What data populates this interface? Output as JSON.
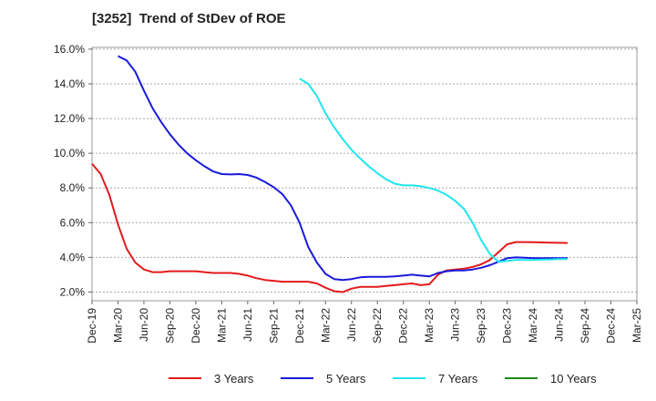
{
  "chart_data": {
    "type": "line",
    "title": "[3252]  Trend of StDev of ROE",
    "xlabel": "",
    "ylabel": "",
    "x_ticks": [
      "Dec-19",
      "Mar-20",
      "Jun-20",
      "Sep-20",
      "Dec-20",
      "Mar-21",
      "Jun-21",
      "Sep-21",
      "Dec-21",
      "Mar-22",
      "Jun-22",
      "Sep-22",
      "Dec-22",
      "Mar-23",
      "Jun-23",
      "Sep-23",
      "Dec-23",
      "Mar-24",
      "Jun-24",
      "Sep-24",
      "Dec-24",
      "Mar-25"
    ],
    "y_ticks": [
      "2.0%",
      "4.0%",
      "6.0%",
      "8.0%",
      "10.0%",
      "12.0%",
      "14.0%",
      "16.0%"
    ],
    "ylim": [
      1.5,
      16.1
    ],
    "grid": "horizontal-dashed",
    "legend_position": "bottom",
    "series": [
      {
        "name": "3 Years",
        "color": "#e31a1c",
        "values": [
          [
            0,
            9.4
          ],
          [
            1,
            8.8
          ],
          [
            2,
            7.6
          ],
          [
            3,
            5.9
          ],
          [
            4,
            4.5
          ],
          [
            5,
            3.7
          ],
          [
            6,
            3.3
          ],
          [
            7,
            3.15
          ],
          [
            8,
            3.15
          ],
          [
            9,
            3.2
          ],
          [
            10,
            3.2
          ],
          [
            11,
            3.2
          ],
          [
            12,
            3.2
          ],
          [
            13,
            3.15
          ],
          [
            14,
            3.1
          ],
          [
            15,
            3.1
          ],
          [
            16,
            3.1
          ],
          [
            17,
            3.05
          ],
          [
            18,
            2.95
          ],
          [
            19,
            2.8
          ],
          [
            20,
            2.7
          ],
          [
            21,
            2.65
          ],
          [
            22,
            2.6
          ],
          [
            23,
            2.6
          ],
          [
            24,
            2.6
          ],
          [
            25,
            2.6
          ],
          [
            26,
            2.5
          ],
          [
            27,
            2.25
          ],
          [
            28,
            2.05
          ],
          [
            29,
            2.0
          ],
          [
            30,
            2.2
          ],
          [
            31,
            2.3
          ],
          [
            32,
            2.3
          ],
          [
            33,
            2.3
          ],
          [
            34,
            2.35
          ],
          [
            35,
            2.4
          ],
          [
            36,
            2.45
          ],
          [
            37,
            2.5
          ],
          [
            38,
            2.4
          ],
          [
            39,
            2.45
          ],
          [
            40,
            3.0
          ],
          [
            41,
            3.25
          ],
          [
            42,
            3.3
          ],
          [
            43,
            3.35
          ],
          [
            44,
            3.45
          ],
          [
            45,
            3.6
          ],
          [
            46,
            3.85
          ],
          [
            47,
            4.3
          ],
          [
            48,
            4.75
          ],
          [
            49,
            4.88
          ],
          [
            50,
            4.88
          ],
          [
            51,
            4.87
          ],
          [
            52,
            4.86
          ],
          [
            53,
            4.85
          ],
          [
            54,
            4.84
          ],
          [
            55,
            4.83
          ]
        ]
      },
      {
        "name": "5 Years",
        "color": "#1a1adb",
        "values": [
          [
            3,
            15.6
          ],
          [
            4,
            15.35
          ],
          [
            5,
            14.7
          ],
          [
            6,
            13.6
          ],
          [
            7,
            12.6
          ],
          [
            8,
            11.8
          ],
          [
            9,
            11.1
          ],
          [
            10,
            10.5
          ],
          [
            11,
            10.0
          ],
          [
            12,
            9.6
          ],
          [
            13,
            9.25
          ],
          [
            14,
            8.95
          ],
          [
            15,
            8.8
          ],
          [
            16,
            8.78
          ],
          [
            17,
            8.8
          ],
          [
            18,
            8.75
          ],
          [
            19,
            8.6
          ],
          [
            20,
            8.35
          ],
          [
            21,
            8.05
          ],
          [
            22,
            7.65
          ],
          [
            23,
            7.0
          ],
          [
            24,
            6.0
          ],
          [
            25,
            4.6
          ],
          [
            26,
            3.7
          ],
          [
            27,
            3.05
          ],
          [
            28,
            2.75
          ],
          [
            29,
            2.7
          ],
          [
            30,
            2.75
          ],
          [
            31,
            2.85
          ],
          [
            32,
            2.88
          ],
          [
            33,
            2.88
          ],
          [
            34,
            2.88
          ],
          [
            35,
            2.9
          ],
          [
            36,
            2.95
          ],
          [
            37,
            3.0
          ],
          [
            38,
            2.95
          ],
          [
            39,
            2.9
          ],
          [
            40,
            3.1
          ],
          [
            41,
            3.2
          ],
          [
            42,
            3.25
          ],
          [
            43,
            3.25
          ],
          [
            44,
            3.3
          ],
          [
            45,
            3.4
          ],
          [
            46,
            3.55
          ],
          [
            47,
            3.75
          ],
          [
            48,
            3.95
          ],
          [
            49,
            4.0
          ],
          [
            50,
            3.98
          ],
          [
            51,
            3.95
          ],
          [
            52,
            3.95
          ],
          [
            53,
            3.95
          ],
          [
            54,
            3.95
          ],
          [
            55,
            3.95
          ]
        ]
      },
      {
        "name": "7 Years",
        "color": "#1ee6ee",
        "values": [
          [
            24,
            14.3
          ],
          [
            25,
            14.0
          ],
          [
            26,
            13.3
          ],
          [
            27,
            12.3
          ],
          [
            28,
            11.5
          ],
          [
            29,
            10.8
          ],
          [
            30,
            10.2
          ],
          [
            31,
            9.7
          ],
          [
            32,
            9.25
          ],
          [
            33,
            8.85
          ],
          [
            34,
            8.5
          ],
          [
            35,
            8.25
          ],
          [
            36,
            8.15
          ],
          [
            37,
            8.15
          ],
          [
            38,
            8.1
          ],
          [
            39,
            8.0
          ],
          [
            40,
            7.85
          ],
          [
            41,
            7.6
          ],
          [
            42,
            7.25
          ],
          [
            43,
            6.8
          ],
          [
            44,
            6.0
          ],
          [
            45,
            5.0
          ],
          [
            46,
            4.2
          ],
          [
            47,
            3.75
          ],
          [
            48,
            3.8
          ],
          [
            49,
            3.85
          ],
          [
            50,
            3.85
          ],
          [
            51,
            3.85
          ],
          [
            52,
            3.87
          ],
          [
            53,
            3.88
          ],
          [
            54,
            3.9
          ],
          [
            55,
            3.9
          ]
        ]
      },
      {
        "name": "10 Years",
        "color": "#1a8a1a",
        "values": []
      }
    ]
  }
}
